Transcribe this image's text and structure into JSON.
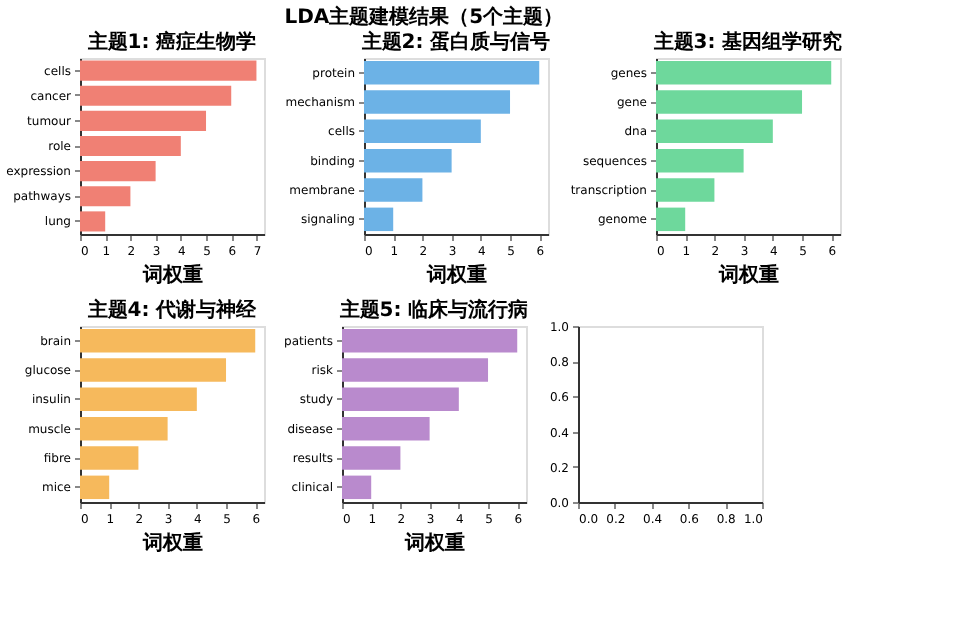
{
  "chart_data": [
    {
      "type": "bar",
      "orientation": "horizontal",
      "title": "主题1: 癌症生物学",
      "xlabel": "词权重",
      "annotations": [
        "LDA主题建模结果（5个主题）"
      ],
      "categories": [
        "cells",
        "cancer",
        "tumour",
        "role",
        "expression",
        "pathways",
        "lung"
      ],
      "values": [
        7,
        6,
        5,
        4,
        3,
        2,
        1
      ],
      "color": "#f08074",
      "xlim": [
        0,
        7.3
      ],
      "xticks": [
        0,
        1,
        2,
        3,
        4,
        5,
        6,
        7
      ],
      "grid": false
    },
    {
      "type": "bar",
      "orientation": "horizontal",
      "title": "主题2: 蛋白质与信号",
      "xlabel": "词权重",
      "categories": [
        "protein",
        "mechanism",
        "cells",
        "binding",
        "membrane",
        "signaling"
      ],
      "values": [
        6,
        5,
        4,
        3,
        2,
        1
      ],
      "color": "#6cb2e6",
      "xlim": [
        0,
        6.3
      ],
      "xticks": [
        0,
        1,
        2,
        3,
        4,
        5,
        6
      ],
      "grid": false
    },
    {
      "type": "bar",
      "orientation": "horizontal",
      "title": "主题3: 基因组学研究",
      "xlabel": "词权重",
      "categories": [
        "genes",
        "gene",
        "dna",
        "sequences",
        "transcription",
        "genome"
      ],
      "values": [
        6,
        5,
        4,
        3,
        2,
        1
      ],
      "color": "#6ed89c",
      "xlim": [
        0,
        6.3
      ],
      "xticks": [
        0,
        1,
        2,
        3,
        4,
        5,
        6
      ],
      "grid": false
    },
    {
      "type": "bar",
      "orientation": "horizontal",
      "title": "主题4: 代谢与神经",
      "xlabel": "词权重",
      "categories": [
        "brain",
        "glucose",
        "insulin",
        "muscle",
        "fibre",
        "mice"
      ],
      "values": [
        6,
        5,
        4,
        3,
        2,
        1
      ],
      "color": "#f6b95c",
      "xlim": [
        0,
        6.3
      ],
      "xticks": [
        0,
        1,
        2,
        3,
        4,
        5,
        6
      ],
      "grid": false
    },
    {
      "type": "bar",
      "orientation": "horizontal",
      "title": "主题5: 临床与流行病",
      "xlabel": "词权重",
      "categories": [
        "patients",
        "risk",
        "study",
        "disease",
        "results",
        "clinical"
      ],
      "values": [
        6,
        5,
        4,
        3,
        2,
        1
      ],
      "color": "#b98acd",
      "xlim": [
        0,
        6.3
      ],
      "xticks": [
        0,
        1,
        2,
        3,
        4,
        5,
        6
      ],
      "grid": false
    },
    {
      "type": "scatter",
      "xlim": [
        0,
        1
      ],
      "ylim": [
        0,
        1
      ],
      "xticks": [
        {
          "value": 0,
          "label": "0.0"
        },
        {
          "value": 0.2,
          "label": "0.2"
        },
        {
          "value": 0.4,
          "label": "0.4"
        },
        {
          "value": 0.6,
          "label": "0.6"
        },
        {
          "value": 0.8,
          "label": "0.8"
        },
        {
          "value": 1,
          "label": "1.0"
        }
      ],
      "yticks": [
        {
          "value": 0,
          "label": "0.0"
        },
        {
          "value": 0.2,
          "label": "0.2"
        },
        {
          "value": 0.4,
          "label": "0.4"
        },
        {
          "value": 0.6,
          "label": "0.6"
        },
        {
          "value": 0.8,
          "label": "0.8"
        },
        {
          "value": 1,
          "label": "1.0"
        }
      ],
      "grid": false
    }
  ]
}
